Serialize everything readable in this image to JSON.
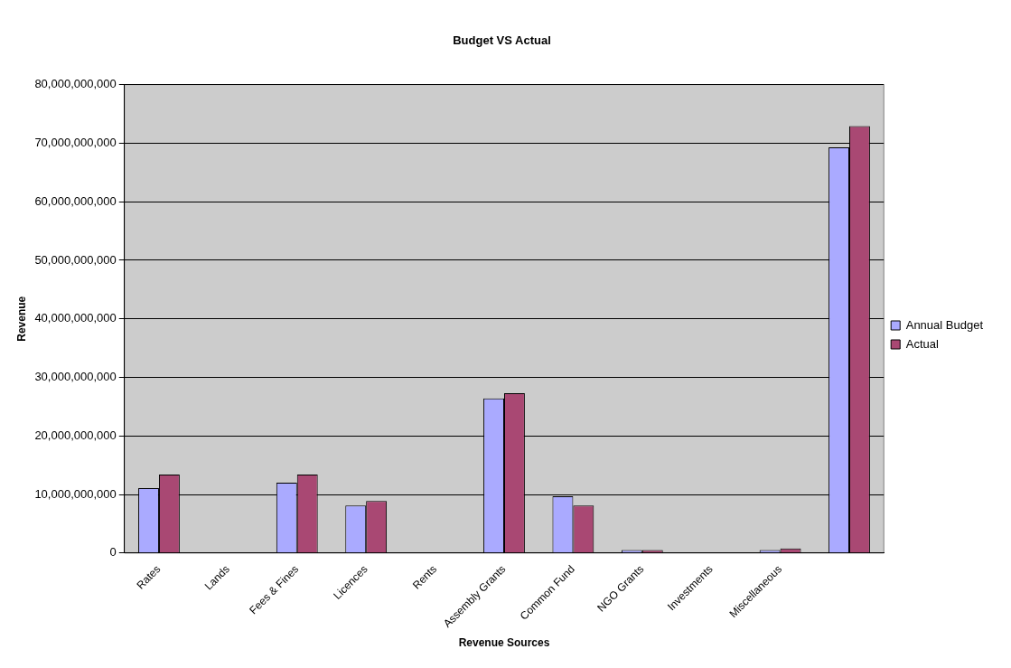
{
  "chart_data": {
    "type": "bar",
    "title": "Budget VS Actual",
    "xlabel": "Revenue Sources",
    "ylabel": "Revenue",
    "categories": [
      "Rates",
      "Lands",
      "Fees & Fines",
      "Licences",
      "Rents",
      "Assembly Grants",
      "Common Fund",
      "NGO Grants",
      "Investments",
      "Miscellaneous",
      null
    ],
    "series": [
      {
        "name": "Annual Budget",
        "color": "#aaaaff",
        "values": [
          11100000000,
          0,
          12000000000,
          8100000000,
          0,
          26400000000,
          9700000000,
          500000000,
          0,
          500000000,
          69300000000
        ]
      },
      {
        "name": "Actual",
        "color": "#a94873",
        "values": [
          13400000000,
          0,
          13400000000,
          8900000000,
          0,
          27300000000,
          8100000000,
          500000000,
          0,
          800000000,
          72900000000
        ]
      }
    ],
    "ylim": [
      0,
      80000000000
    ],
    "yticks": [
      0,
      {
        "value": 10000000000,
        "label": "10,000,000,000"
      },
      {
        "value": 20000000000,
        "label": "20,000,000,000"
      },
      {
        "value": 30000000000,
        "label": "30,000,000,000"
      },
      {
        "value": 40000000000,
        "label": "40,000,000,000"
      },
      {
        "value": 50000000000,
        "label": "50,000,000,000"
      },
      {
        "value": 60000000000,
        "label": "60,000,000,000"
      },
      {
        "value": 70000000000,
        "label": "70,000,000,000"
      },
      {
        "value": 80000000000,
        "label": "80,000,000,000"
      }
    ],
    "grid": "y",
    "legend": "right"
  }
}
